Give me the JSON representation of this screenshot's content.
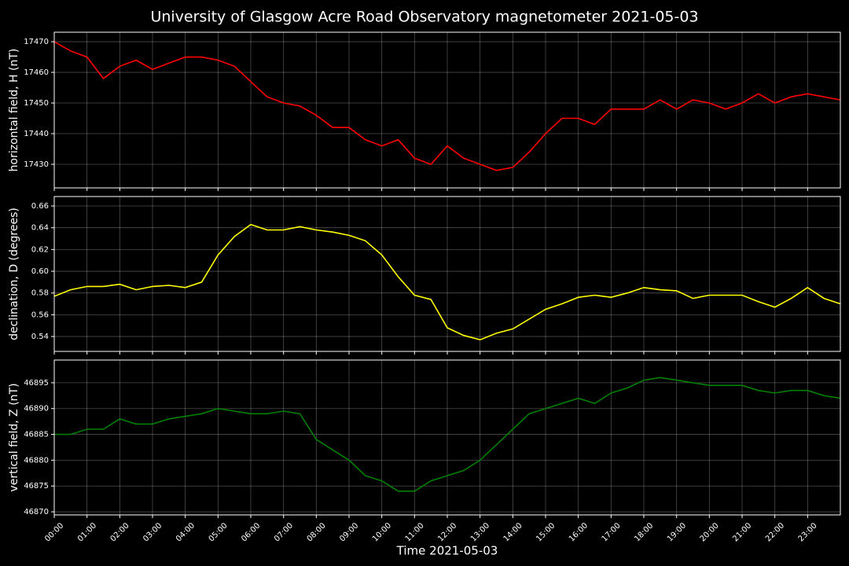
{
  "chart_data": [
    {
      "type": "line",
      "title": "University of Glasgow Acre Road Observatory magnetometer 2021-05-03",
      "ylabel": "horizontal field, H (nT)",
      "color": "#ff0000",
      "grid": true,
      "x": [
        0,
        0.5,
        1,
        1.5,
        2,
        2.5,
        3,
        3.5,
        4,
        4.5,
        5,
        5.5,
        6,
        6.5,
        7,
        7.5,
        8,
        8.5,
        9,
        9.5,
        10,
        10.5,
        11,
        11.5,
        12,
        12.5,
        13,
        13.5,
        14,
        14.5,
        15,
        15.5,
        16,
        16.5,
        17,
        17.5,
        18,
        18.5,
        19,
        19.5,
        20,
        20.5,
        21,
        21.5,
        22,
        22.5,
        23,
        23.5,
        24
      ],
      "values": [
        17470,
        17467,
        17465,
        17458,
        17462,
        17464,
        17461,
        17463,
        17465,
        17465,
        17464,
        17462,
        17457,
        17452,
        17450,
        17449,
        17446,
        17442,
        17442,
        17438,
        17436,
        17438,
        17432,
        17430,
        17436,
        17432,
        17430,
        17428,
        17429,
        17434,
        17440,
        17445,
        17445,
        17443,
        17448,
        17448,
        17448,
        17451,
        17448,
        17451,
        17450,
        17448,
        17450,
        17453,
        17450,
        17452,
        17453,
        17452,
        17451
      ],
      "xlim": [
        0,
        24
      ],
      "ylim": [
        17422.3,
        17473.1
      ],
      "yticks": [
        17430,
        17440,
        17450,
        17460,
        17470
      ]
    },
    {
      "type": "line",
      "ylabel": "declination, D (degrees)",
      "color": "#ffff00",
      "grid": true,
      "x": [
        0,
        0.5,
        1,
        1.5,
        2,
        2.5,
        3,
        3.5,
        4,
        4.5,
        5,
        5.5,
        6,
        6.5,
        7,
        7.5,
        8,
        8.5,
        9,
        9.5,
        10,
        10.5,
        11,
        11.5,
        12,
        12.5,
        13,
        13.5,
        14,
        14.5,
        15,
        15.5,
        16,
        16.5,
        17,
        17.5,
        18,
        18.5,
        19,
        19.5,
        20,
        20.5,
        21,
        21.5,
        22,
        22.5,
        23,
        23.5,
        24
      ],
      "values": [
        0.577,
        0.583,
        0.586,
        0.586,
        0.588,
        0.583,
        0.586,
        0.587,
        0.585,
        0.59,
        0.615,
        0.632,
        0.643,
        0.638,
        0.638,
        0.641,
        0.638,
        0.636,
        0.633,
        0.628,
        0.615,
        0.595,
        0.578,
        0.574,
        0.548,
        0.541,
        0.537,
        0.543,
        0.547,
        0.556,
        0.565,
        0.57,
        0.576,
        0.578,
        0.576,
        0.58,
        0.585,
        0.583,
        0.582,
        0.575,
        0.578,
        0.578,
        0.578,
        0.572,
        0.567,
        0.575,
        0.585,
        0.575,
        0.57
      ],
      "xlim": [
        0,
        24
      ],
      "ylim": [
        0.5263,
        0.6687
      ],
      "yticks": [
        0.54,
        0.56,
        0.58,
        {
          "value": 0.6,
          "label": "0.60"
        },
        0.62,
        0.64,
        0.66
      ]
    },
    {
      "type": "line",
      "ylabel": "vertical field, Z (nT)",
      "xlabel": "Time 2021-05-03",
      "color": "#008000",
      "grid": true,
      "x": [
        0,
        0.5,
        1,
        1.5,
        2,
        2.5,
        3,
        3.5,
        4,
        4.5,
        5,
        5.5,
        6,
        6.5,
        7,
        7.5,
        8,
        8.5,
        9,
        9.5,
        10,
        10.5,
        11,
        11.5,
        12,
        12.5,
        13,
        13.5,
        14,
        14.5,
        15,
        15.5,
        16,
        16.5,
        17,
        17.5,
        18,
        18.5,
        19,
        19.5,
        20,
        20.5,
        21,
        21.5,
        22,
        22.5,
        23,
        23.5,
        24
      ],
      "values": [
        46885,
        46885,
        46886,
        46886,
        46888,
        46887,
        46887,
        46888,
        46888.5,
        46889,
        46890,
        46889.5,
        46889,
        46889,
        46889.5,
        46889,
        46884,
        46882,
        46880,
        46877,
        46876,
        46874,
        46874,
        46876,
        46877,
        46878,
        46880,
        46883,
        46886,
        46889,
        46890,
        46891,
        46892,
        46891,
        46893,
        46894,
        46895.5,
        46896,
        46895.5,
        46895,
        46894.5,
        46894.5,
        46894.5,
        46893.5,
        46893,
        46893.5,
        46893.5,
        46892.5,
        46892
      ],
      "xlim": [
        0,
        24
      ],
      "ylim": [
        46869.4,
        46899.4
      ],
      "yticks": [
        46870,
        46875,
        46880,
        46885,
        46890,
        46895
      ],
      "xticks": [
        {
          "value": 0,
          "label": "00:00"
        },
        {
          "value": 1,
          "label": "01:00"
        },
        {
          "value": 2,
          "label": "02:00"
        },
        {
          "value": 3,
          "label": "03:00"
        },
        {
          "value": 4,
          "label": "04:00"
        },
        {
          "value": 5,
          "label": "05:00"
        },
        {
          "value": 6,
          "label": "06:00"
        },
        {
          "value": 7,
          "label": "07:00"
        },
        {
          "value": 8,
          "label": "08:00"
        },
        {
          "value": 9,
          "label": "09:00"
        },
        {
          "value": 10,
          "label": "10:00"
        },
        {
          "value": 11,
          "label": "11:00"
        },
        {
          "value": 12,
          "label": "12:00"
        },
        {
          "value": 13,
          "label": "13:00"
        },
        {
          "value": 14,
          "label": "14:00"
        },
        {
          "value": 15,
          "label": "15:00"
        },
        {
          "value": 16,
          "label": "16:00"
        },
        {
          "value": 17,
          "label": "17:00"
        },
        {
          "value": 18,
          "label": "18:00"
        },
        {
          "value": 19,
          "label": "19:00"
        },
        {
          "value": 20,
          "label": "20:00"
        },
        {
          "value": 21,
          "label": "21:00"
        },
        {
          "value": 22,
          "label": "22:00"
        },
        {
          "value": 23,
          "label": "23:00"
        }
      ]
    }
  ]
}
